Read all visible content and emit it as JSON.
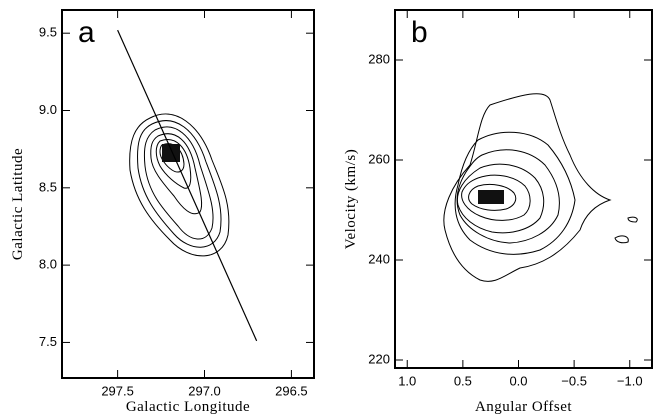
{
  "chart_data": [
    {
      "type": "contour",
      "panel_label": "a",
      "x_label": "Galactic Longitude",
      "y_label": "Galactic Latitude",
      "xlim": [
        297.82,
        296.37
      ],
      "ylim": [
        7.27,
        9.65
      ],
      "xticks": [
        297.5,
        {
          "value": 297,
          "label": "297.0"
        },
        296.5
      ],
      "yticks": [
        7.5,
        {
          "value": 8,
          "label": "8.0"
        },
        8.5,
        {
          "value": 9,
          "label": "9.0"
        },
        9.5
      ],
      "line": {
        "x": [
          297.5,
          296.7
        ],
        "y": [
          9.52,
          7.51
        ]
      }
    },
    {
      "type": "contour",
      "panel_label": "b",
      "x_label": "Angular Offset",
      "y_label": "Velocity (km/s)",
      "xlim": [
        1.11,
        -1.2
      ],
      "ylim": [
        218.4,
        290
      ],
      "xticks": [
        {
          "value": 1,
          "label": "1.0"
        },
        0.5,
        {
          "value": 0,
          "label": "0.0"
        },
        {
          "value": -0.5,
          "label": "−0.5"
        },
        {
          "value": -1,
          "label": "−1.0"
        }
      ],
      "yticks": [
        220,
        240,
        260,
        280
      ]
    }
  ]
}
